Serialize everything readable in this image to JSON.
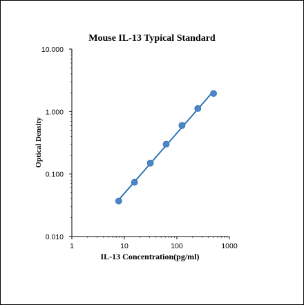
{
  "chart_data": {
    "type": "scatter",
    "title": "Mouse IL-13 Typical Standard",
    "xlabel": "IL-13 Concentration(pg/ml)",
    "ylabel": "Optical Density",
    "xscale": "log",
    "yscale": "log",
    "xlim": [
      1,
      1000
    ],
    "ylim": [
      0.01,
      10
    ],
    "xticks": [
      "1",
      "10",
      "100",
      "1000"
    ],
    "yticks": [
      "0.010",
      "0.100",
      "1.000",
      "10.000"
    ],
    "grid": false,
    "legend": "none",
    "colors": {
      "series": "#2e75b6",
      "marker": "#4a86c8",
      "axis": "#000000"
    },
    "series": [
      {
        "x": [
          7.8,
          15.6,
          31.25,
          62.5,
          125,
          250,
          500
        ],
        "y": [
          0.037,
          0.074,
          0.15,
          0.3,
          0.6,
          1.12,
          1.95
        ]
      }
    ]
  }
}
